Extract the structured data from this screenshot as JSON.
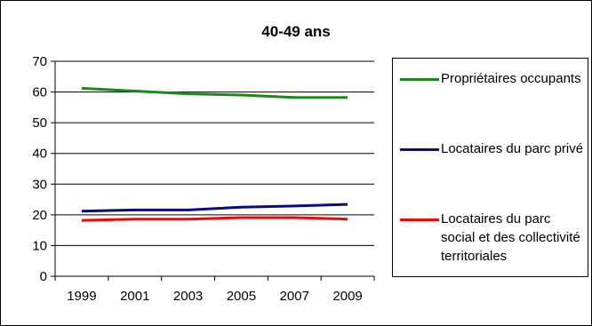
{
  "chart_data": {
    "type": "line",
    "title": "40-49 ans",
    "xlabel": "",
    "ylabel": "",
    "categories": [
      "1999",
      "2001",
      "2003",
      "2005",
      "2007",
      "2009"
    ],
    "ylim": [
      0,
      70
    ],
    "yticks": [
      0,
      10,
      20,
      30,
      40,
      50,
      60,
      70
    ],
    "grid": "horizontal",
    "legend_position": "right",
    "series": [
      {
        "name": "Propriétaires occupants",
        "color": "#1a8a1a",
        "values": [
          61.2,
          60.3,
          59.4,
          59.0,
          58.2,
          58.2
        ]
      },
      {
        "name": "Locataires du parc privé",
        "color": "#0a0a80",
        "values": [
          21.2,
          21.6,
          21.6,
          22.5,
          22.9,
          23.4
        ]
      },
      {
        "name": "Locataires du parc social et des collectivité territoriales",
        "color": "#ff0000",
        "values": [
          18.2,
          18.6,
          18.6,
          19.1,
          19.1,
          18.6
        ]
      }
    ]
  }
}
